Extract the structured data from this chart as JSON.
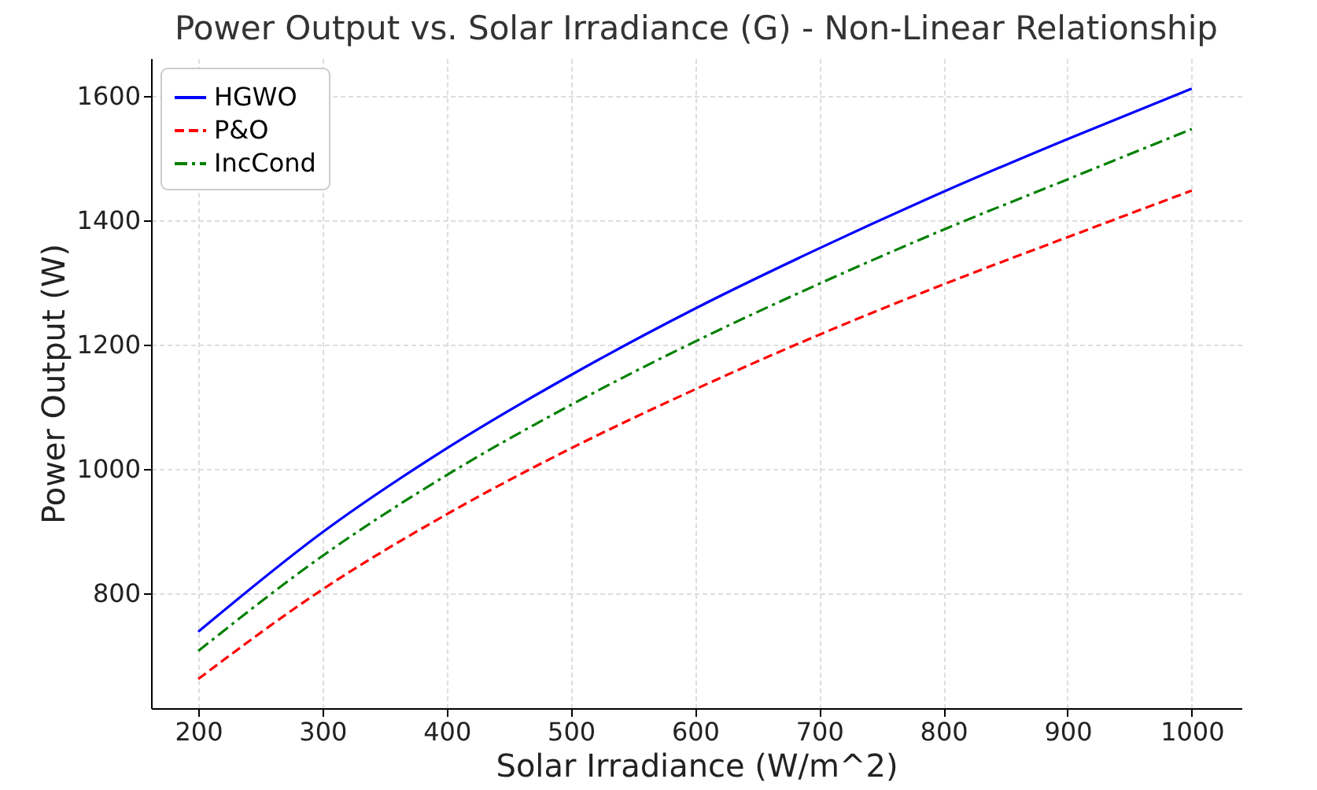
{
  "chart_data": {
    "type": "line",
    "title": "Power Output vs. Solar Irradiance (G) - Non-Linear Relationship",
    "xlabel": "Solar Irradiance (W/m^2)",
    "ylabel": "Power Output (W)",
    "x": [
      200,
      300,
      400,
      500,
      600,
      700,
      800,
      900,
      1000
    ],
    "series": [
      {
        "name": "HGWO",
        "color": "#0000ff",
        "line_style": "solid",
        "values": [
          738,
          898,
          1033,
          1151,
          1258,
          1355,
          1446,
          1531,
          1612
        ]
      },
      {
        "name": "P&O",
        "color": "#ff0000",
        "line_style": "dashed",
        "values": [
          662,
          806,
          927,
          1033,
          1128,
          1216,
          1297,
          1373,
          1448
        ]
      },
      {
        "name": "IncCond",
        "color": "#008000",
        "line_style": "dashdot",
        "values": [
          707,
          860,
          990,
          1103,
          1205,
          1298,
          1385,
          1466,
          1547
        ]
      }
    ],
    "xlim": [
      162,
      1040
    ],
    "xticks": [
      200,
      300,
      400,
      500,
      600,
      700,
      800,
      900,
      1000
    ],
    "ylim": [
      615,
      1661
    ],
    "yticks": [
      800,
      1000,
      1200,
      1400,
      1600
    ],
    "grid": true,
    "legend": "top left"
  }
}
